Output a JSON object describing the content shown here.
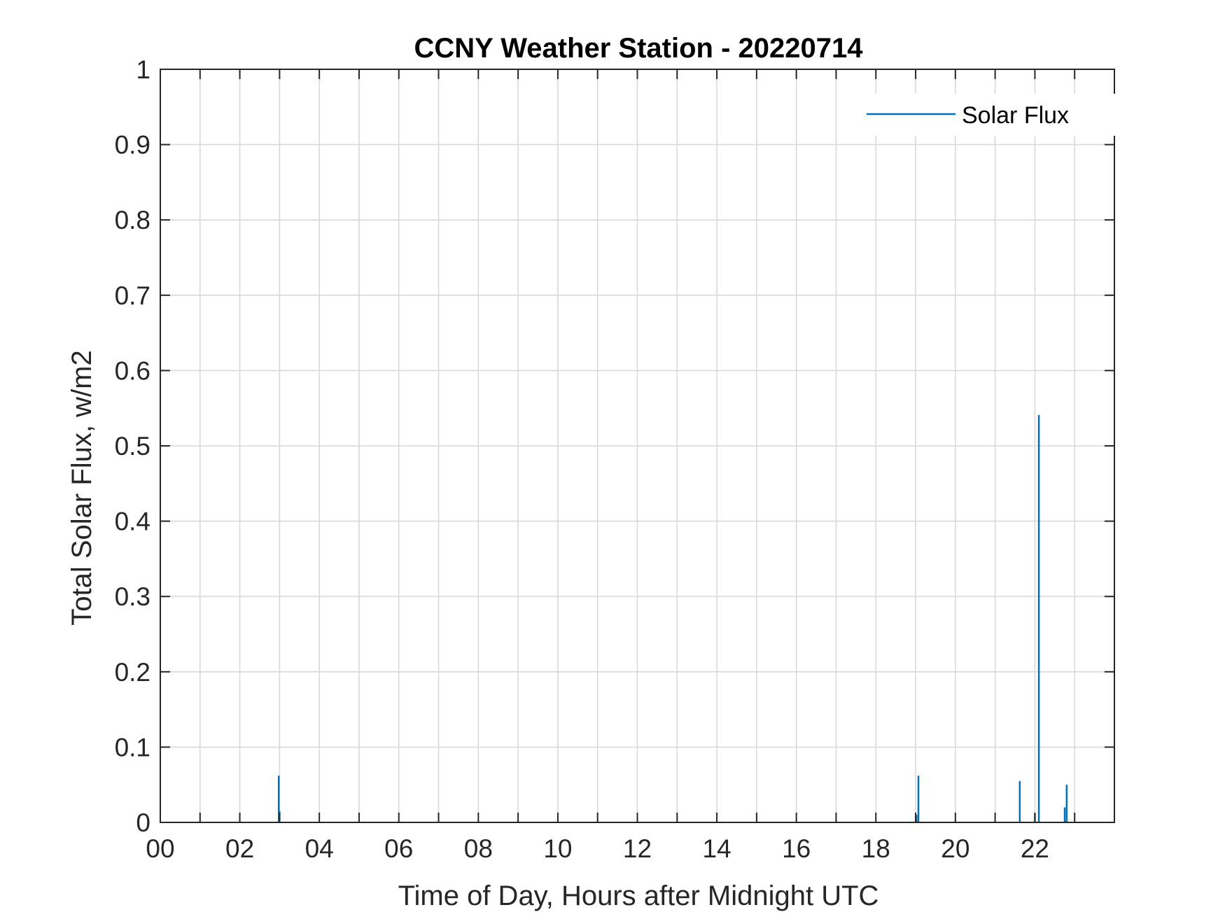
{
  "chart_data": {
    "type": "line",
    "title": "CCNY Weather Station - 20220714",
    "xlabel": "Time of Day, Hours after Midnight UTC",
    "ylabel": "Total Solar Flux, w/m2",
    "xlim": [
      0,
      24
    ],
    "ylim": [
      0,
      1
    ],
    "grid": true,
    "legend_position": "top-right",
    "x_ticks": [
      0,
      2,
      4,
      6,
      8,
      10,
      12,
      14,
      16,
      18,
      20,
      22
    ],
    "x_tick_labels": [
      "00",
      "02",
      "04",
      "06",
      "08",
      "10",
      "12",
      "14",
      "16",
      "18",
      "20",
      "22"
    ],
    "x_grid_step": 1,
    "y_ticks": [
      0,
      0.1,
      0.2,
      0.3,
      0.4,
      0.5,
      0.6,
      0.7,
      0.8,
      0.9,
      1
    ],
    "y_tick_labels": [
      "0",
      "0.1",
      "0.2",
      "0.3",
      "0.4",
      "0.5",
      "0.6",
      "0.7",
      "0.8",
      "0.9",
      "1"
    ],
    "series": [
      {
        "name": "Solar Flux",
        "color": "#0072BD",
        "spikes": [
          {
            "x": 2.98,
            "y": 0.062
          },
          {
            "x": 3.0,
            "y": 0.015
          },
          {
            "x": 19.02,
            "y": 0.01
          },
          {
            "x": 19.07,
            "y": 0.062
          },
          {
            "x": 21.62,
            "y": 0.055
          },
          {
            "x": 22.0,
            "y": 0.012
          },
          {
            "x": 22.1,
            "y": 0.541
          },
          {
            "x": 22.75,
            "y": 0.02
          },
          {
            "x": 22.8,
            "y": 0.05
          }
        ]
      }
    ]
  }
}
